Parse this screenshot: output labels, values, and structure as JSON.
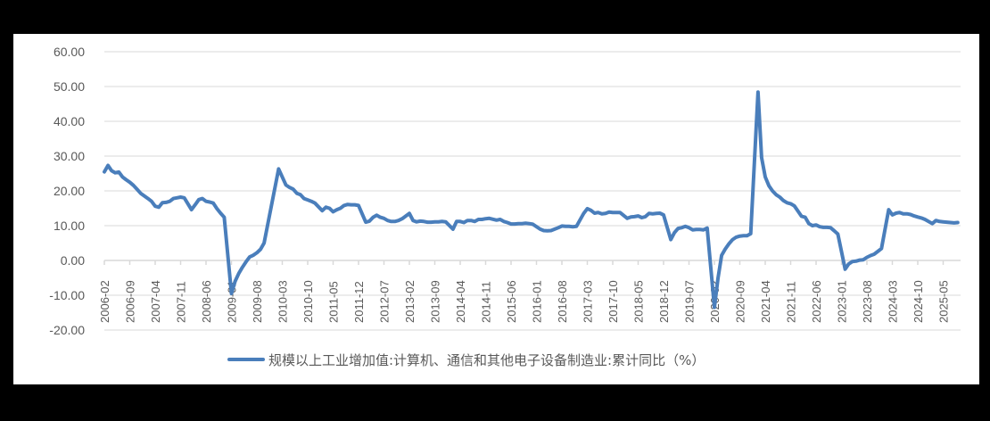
{
  "chart_data": {
    "type": "line",
    "title": "",
    "xlabel": "",
    "ylabel": "",
    "ylim": [
      -20,
      60
    ],
    "yticks": [
      "60.00",
      "50.00",
      "40.00",
      "30.00",
      "20.00",
      "10.00",
      "0.00",
      "-10.00",
      "-20.00"
    ],
    "grid": true,
    "legend_position": "bottom",
    "x_tick_labels": [
      "2006-02",
      "2006-09",
      "2007-04",
      "2007-11",
      "2008-06",
      "2009-01",
      "2009-08",
      "2010-03",
      "2010-10",
      "2011-05",
      "2011-12",
      "2012-07",
      "2013-02",
      "2013-09",
      "2014-04",
      "2014-11",
      "2015-06",
      "2016-01",
      "2016-08",
      "2017-03",
      "2017-10",
      "2018-05",
      "2018-12",
      "2019-07",
      "2020-02",
      "2020-09",
      "2021-04",
      "2021-11",
      "2022-06",
      "2023-01",
      "2023-08",
      "2024-03",
      "2024-10",
      "2025-05"
    ],
    "series": [
      {
        "name": "规模以上工业增加值:计算机、通信和其他电子设备制造业:累计同比（%）",
        "color": "#4a7ebb",
        "points": [
          [
            "2006-02",
            25.5
          ],
          [
            "2006-03",
            27.3
          ],
          [
            "2006-04",
            25.8
          ],
          [
            "2006-05",
            25.2
          ],
          [
            "2006-06",
            25.4
          ],
          [
            "2006-07",
            24.0
          ],
          [
            "2006-08",
            23.2
          ],
          [
            "2006-09",
            22.5
          ],
          [
            "2006-10",
            21.6
          ],
          [
            "2006-11",
            20.5
          ],
          [
            "2006-12",
            19.3
          ],
          [
            "2007-02",
            17.8
          ],
          [
            "2007-03",
            17.0
          ],
          [
            "2007-04",
            15.6
          ],
          [
            "2007-05",
            15.3
          ],
          [
            "2007-06",
            16.6
          ],
          [
            "2007-07",
            16.7
          ],
          [
            "2007-08",
            17.0
          ],
          [
            "2007-09",
            17.8
          ],
          [
            "2007-10",
            18.0
          ],
          [
            "2007-11",
            18.2
          ],
          [
            "2007-12",
            18.0
          ],
          [
            "2008-02",
            14.6
          ],
          [
            "2008-03",
            16.0
          ],
          [
            "2008-04",
            17.5
          ],
          [
            "2008-05",
            17.8
          ],
          [
            "2008-06",
            17.0
          ],
          [
            "2008-07",
            16.8
          ],
          [
            "2008-08",
            16.5
          ],
          [
            "2008-09",
            14.9
          ],
          [
            "2008-10",
            13.6
          ],
          [
            "2008-11",
            12.4
          ],
          [
            "2009-01",
            -9.5
          ],
          [
            "2009-02",
            -6.0
          ],
          [
            "2009-03",
            -3.8
          ],
          [
            "2009-04",
            -2.0
          ],
          [
            "2009-05",
            -0.4
          ],
          [
            "2009-06",
            1.0
          ],
          [
            "2009-07",
            1.5
          ],
          [
            "2009-08",
            2.2
          ],
          [
            "2009-09",
            3.2
          ],
          [
            "2009-10",
            5.0
          ],
          [
            "2010-02",
            26.3
          ],
          [
            "2010-03",
            24.0
          ],
          [
            "2010-04",
            21.7
          ],
          [
            "2010-05",
            21.0
          ],
          [
            "2010-06",
            20.5
          ],
          [
            "2010-07",
            19.3
          ],
          [
            "2010-08",
            18.9
          ],
          [
            "2010-09",
            17.8
          ],
          [
            "2010-10",
            17.4
          ],
          [
            "2010-11",
            17.0
          ],
          [
            "2010-12",
            16.5
          ],
          [
            "2011-02",
            14.3
          ],
          [
            "2011-03",
            15.3
          ],
          [
            "2011-04",
            15.0
          ],
          [
            "2011-05",
            14.0
          ],
          [
            "2011-06",
            14.6
          ],
          [
            "2011-07",
            15.0
          ],
          [
            "2011-08",
            15.8
          ],
          [
            "2011-09",
            16.1
          ],
          [
            "2011-10",
            16.0
          ],
          [
            "2011-11",
            16.0
          ],
          [
            "2011-12",
            15.8
          ],
          [
            "2012-02",
            11.0
          ],
          [
            "2012-03",
            11.3
          ],
          [
            "2012-04",
            12.4
          ],
          [
            "2012-05",
            13.0
          ],
          [
            "2012-06",
            12.4
          ],
          [
            "2012-07",
            12.1
          ],
          [
            "2012-08",
            11.5
          ],
          [
            "2012-09",
            11.2
          ],
          [
            "2012-10",
            11.2
          ],
          [
            "2012-11",
            11.5
          ],
          [
            "2012-12",
            12.0
          ],
          [
            "2013-02",
            13.5
          ],
          [
            "2013-03",
            11.5
          ],
          [
            "2013-04",
            11.1
          ],
          [
            "2013-05",
            11.3
          ],
          [
            "2013-06",
            11.2
          ],
          [
            "2013-07",
            11.0
          ],
          [
            "2013-08",
            11.0
          ],
          [
            "2013-09",
            11.1
          ],
          [
            "2013-10",
            11.1
          ],
          [
            "2013-11",
            11.2
          ],
          [
            "2013-12",
            11.1
          ],
          [
            "2014-02",
            9.0
          ],
          [
            "2014-03",
            11.2
          ],
          [
            "2014-04",
            11.2
          ],
          [
            "2014-05",
            10.9
          ],
          [
            "2014-06",
            11.5
          ],
          [
            "2014-07",
            11.5
          ],
          [
            "2014-08",
            11.2
          ],
          [
            "2014-09",
            11.8
          ],
          [
            "2014-10",
            11.8
          ],
          [
            "2014-11",
            12.0
          ],
          [
            "2014-12",
            12.1
          ],
          [
            "2015-02",
            11.6
          ],
          [
            "2015-03",
            11.8
          ],
          [
            "2015-04",
            11.2
          ],
          [
            "2015-05",
            10.9
          ],
          [
            "2015-06",
            10.5
          ],
          [
            "2015-07",
            10.5
          ],
          [
            "2015-08",
            10.6
          ],
          [
            "2015-09",
            10.6
          ],
          [
            "2015-10",
            10.7
          ],
          [
            "2015-11",
            10.6
          ],
          [
            "2015-12",
            10.4
          ],
          [
            "2016-02",
            9.0
          ],
          [
            "2016-03",
            8.6
          ],
          [
            "2016-04",
            8.5
          ],
          [
            "2016-05",
            8.6
          ],
          [
            "2016-06",
            9.0
          ],
          [
            "2016-07",
            9.4
          ],
          [
            "2016-08",
            9.9
          ],
          [
            "2016-09",
            9.8
          ],
          [
            "2016-10",
            9.8
          ],
          [
            "2016-11",
            9.7
          ],
          [
            "2016-12",
            9.8
          ],
          [
            "2017-02",
            13.5
          ],
          [
            "2017-03",
            14.9
          ],
          [
            "2017-04",
            14.4
          ],
          [
            "2017-05",
            13.6
          ],
          [
            "2017-06",
            13.8
          ],
          [
            "2017-07",
            13.4
          ],
          [
            "2017-08",
            13.5
          ],
          [
            "2017-09",
            13.9
          ],
          [
            "2017-10",
            13.8
          ],
          [
            "2017-11",
            13.8
          ],
          [
            "2017-12",
            13.8
          ],
          [
            "2018-02",
            12.1
          ],
          [
            "2018-03",
            12.5
          ],
          [
            "2018-04",
            12.6
          ],
          [
            "2018-05",
            12.8
          ],
          [
            "2018-06",
            12.3
          ],
          [
            "2018-07",
            12.6
          ],
          [
            "2018-08",
            13.5
          ],
          [
            "2018-09",
            13.4
          ],
          [
            "2018-10",
            13.5
          ],
          [
            "2018-11",
            13.6
          ],
          [
            "2018-12",
            13.1
          ],
          [
            "2019-02",
            6.0
          ],
          [
            "2019-03",
            8.0
          ],
          [
            "2019-04",
            9.2
          ],
          [
            "2019-05",
            9.4
          ],
          [
            "2019-06",
            9.8
          ],
          [
            "2019-07",
            9.4
          ],
          [
            "2019-08",
            8.8
          ],
          [
            "2019-09",
            8.9
          ],
          [
            "2019-10",
            8.9
          ],
          [
            "2019-11",
            8.8
          ],
          [
            "2019-12",
            9.3
          ],
          [
            "2020-02",
            -13.5
          ],
          [
            "2020-03",
            -5.0
          ],
          [
            "2020-04",
            1.5
          ],
          [
            "2020-05",
            3.3
          ],
          [
            "2020-06",
            4.8
          ],
          [
            "2020-07",
            6.0
          ],
          [
            "2020-08",
            6.7
          ],
          [
            "2020-09",
            7.0
          ],
          [
            "2020-10",
            7.1
          ],
          [
            "2020-11",
            7.1
          ],
          [
            "2020-12",
            7.7
          ],
          [
            "2021-02",
            48.4
          ],
          [
            "2021-03",
            29.6
          ],
          [
            "2021-04",
            24.0
          ],
          [
            "2021-05",
            21.5
          ],
          [
            "2021-06",
            20.0
          ],
          [
            "2021-07",
            18.9
          ],
          [
            "2021-08",
            18.2
          ],
          [
            "2021-09",
            17.2
          ],
          [
            "2021-10",
            16.6
          ],
          [
            "2021-11",
            16.3
          ],
          [
            "2021-12",
            15.7
          ],
          [
            "2022-02",
            12.7
          ],
          [
            "2022-03",
            12.4
          ],
          [
            "2022-04",
            10.6
          ],
          [
            "2022-05",
            10.0
          ],
          [
            "2022-06",
            10.2
          ],
          [
            "2022-07",
            9.7
          ],
          [
            "2022-08",
            9.5
          ],
          [
            "2022-09",
            9.5
          ],
          [
            "2022-10",
            9.4
          ],
          [
            "2022-11",
            8.5
          ],
          [
            "2022-12",
            7.6
          ],
          [
            "2023-02",
            -2.5
          ],
          [
            "2023-03",
            -1.0
          ],
          [
            "2023-04",
            -0.3
          ],
          [
            "2023-05",
            -0.2
          ],
          [
            "2023-06",
            0.1
          ],
          [
            "2023-07",
            0.2
          ],
          [
            "2023-08",
            0.9
          ],
          [
            "2023-09",
            1.4
          ],
          [
            "2023-10",
            1.8
          ],
          [
            "2023-11",
            2.6
          ],
          [
            "2023-12",
            3.4
          ],
          [
            "2024-02",
            14.6
          ],
          [
            "2024-03",
            13.1
          ],
          [
            "2024-04",
            13.6
          ],
          [
            "2024-05",
            13.8
          ],
          [
            "2024-06",
            13.4
          ],
          [
            "2024-07",
            13.4
          ],
          [
            "2024-08",
            13.2
          ],
          [
            "2024-09",
            12.8
          ],
          [
            "2024-10",
            12.5
          ],
          [
            "2024-11",
            12.2
          ],
          [
            "2024-12",
            11.8
          ],
          [
            "2025-02",
            10.6
          ],
          [
            "2025-03",
            11.5
          ],
          [
            "2025-04",
            11.2
          ],
          [
            "2025-05",
            11.1
          ],
          [
            "2025-06",
            11.0
          ],
          [
            "2025-07",
            10.9
          ],
          [
            "2025-08",
            10.8
          ],
          [
            "2025-09",
            10.9
          ]
        ]
      }
    ]
  },
  "legend": {
    "label": "规模以上工业增加值:计算机、通信和其他电子设备制造业:累计同比（%）"
  }
}
